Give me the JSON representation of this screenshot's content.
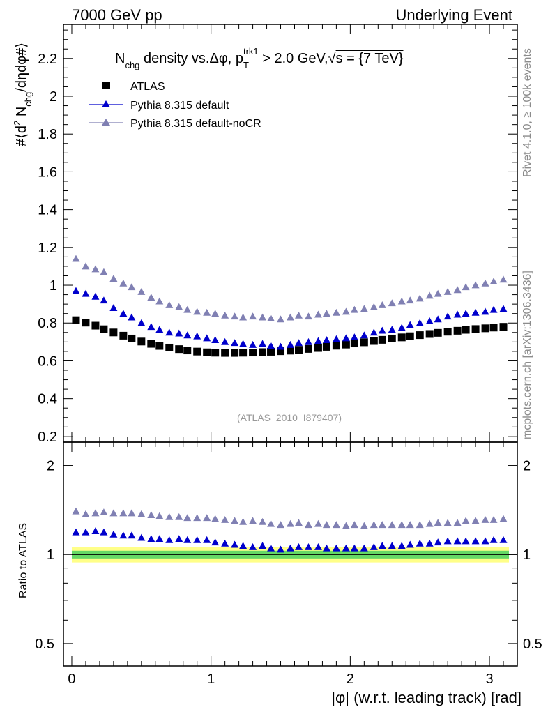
{
  "header": {
    "left": "7000 GeV pp",
    "right": "Underlying Event"
  },
  "side_labels": {
    "rivet": "Rivet 4.1.0, ≥ 100k events",
    "mcplots": "mcplots.cern.ch [arXiv:1306.3436]"
  },
  "analysis_id": "(ATLAS_2010_I879407)",
  "chart_data": [
    {
      "type": "scatter",
      "title": "N_chg density vs. Δφ, p_T^trk1 > 2.0 GeV, √s = {7 TeV}",
      "title_parts": {
        "n": "N",
        "chg": "chg",
        "mid": " density vs.Δφ, p",
        "T": "T",
        "trk1": "trk1",
        "tail": " > 2.0 GeV,",
        "sqrt": "√",
        "s": "s = {7 TeV}"
      },
      "ylabel": "#⟨d² N_chg/dηdφ#⟩",
      "ylabel_parts": {
        "a": "#⟨d",
        "two": "2",
        "b": " N",
        "chg": "chg",
        "c": "/dηdφ#⟩"
      },
      "xlim": [
        -0.06,
        3.2
      ],
      "ylim": [
        0.17,
        2.38
      ],
      "yticks": [
        "0.2",
        "0.4",
        "0.6",
        "0.8",
        "1",
        "1.2",
        "1.4",
        "1.6",
        "1.8",
        "2",
        "2.2"
      ],
      "ytick_values": [
        0.2,
        0.4,
        0.6,
        0.8,
        1.0,
        1.2,
        1.4,
        1.6,
        1.8,
        2.0,
        2.2
      ],
      "x": [
        0.03,
        0.1,
        0.17,
        0.23,
        0.3,
        0.37,
        0.43,
        0.5,
        0.57,
        0.63,
        0.7,
        0.77,
        0.83,
        0.9,
        0.97,
        1.03,
        1.1,
        1.17,
        1.23,
        1.3,
        1.37,
        1.43,
        1.5,
        1.57,
        1.63,
        1.7,
        1.77,
        1.83,
        1.9,
        1.97,
        2.03,
        2.1,
        2.17,
        2.23,
        2.3,
        2.37,
        2.43,
        2.5,
        2.57,
        2.63,
        2.7,
        2.77,
        2.83,
        2.9,
        2.97,
        3.03,
        3.1
      ],
      "series": [
        {
          "name": "ATLAS",
          "marker": "square",
          "color": "#000000",
          "values": [
            0.815,
            0.802,
            0.786,
            0.767,
            0.75,
            0.733,
            0.718,
            0.702,
            0.69,
            0.679,
            0.67,
            0.662,
            0.655,
            0.649,
            0.645,
            0.643,
            0.642,
            0.642,
            0.643,
            0.644,
            0.646,
            0.648,
            0.651,
            0.654,
            0.658,
            0.663,
            0.668,
            0.674,
            0.68,
            0.686,
            0.692,
            0.698,
            0.705,
            0.711,
            0.718,
            0.724,
            0.73,
            0.736,
            0.742,
            0.748,
            0.754,
            0.759,
            0.764,
            0.768,
            0.772,
            0.776,
            0.78
          ]
        },
        {
          "name": "Pythia 8.315 default",
          "marker": "triangle",
          "color": "#0000cc",
          "values": [
            0.97,
            0.955,
            0.94,
            0.92,
            0.88,
            0.85,
            0.83,
            0.8,
            0.78,
            0.765,
            0.75,
            0.745,
            0.735,
            0.73,
            0.72,
            0.71,
            0.7,
            0.695,
            0.69,
            0.685,
            0.69,
            0.68,
            0.675,
            0.685,
            0.695,
            0.7,
            0.705,
            0.71,
            0.715,
            0.72,
            0.725,
            0.735,
            0.75,
            0.76,
            0.765,
            0.775,
            0.79,
            0.8,
            0.81,
            0.82,
            0.835,
            0.845,
            0.85,
            0.855,
            0.86,
            0.87,
            0.875
          ]
        },
        {
          "name": "Pythia 8.315 default-noCR",
          "marker": "triangle",
          "color": "#8080b3",
          "values": [
            1.14,
            1.1,
            1.085,
            1.07,
            1.035,
            1.01,
            0.99,
            0.965,
            0.935,
            0.915,
            0.895,
            0.885,
            0.87,
            0.86,
            0.855,
            0.85,
            0.84,
            0.835,
            0.83,
            0.835,
            0.83,
            0.825,
            0.82,
            0.83,
            0.84,
            0.835,
            0.845,
            0.85,
            0.855,
            0.86,
            0.87,
            0.875,
            0.885,
            0.895,
            0.905,
            0.915,
            0.92,
            0.93,
            0.945,
            0.955,
            0.965,
            0.975,
            0.99,
            1.0,
            1.01,
            1.02,
            1.03
          ]
        }
      ]
    },
    {
      "type": "scatter",
      "title": "",
      "ylabel": "Ratio to ATLAS",
      "xlabel": "|φ| (w.r.t. leading track) [rad]",
      "xlim": [
        -0.06,
        3.2
      ],
      "ylim": [
        0.42,
        2.4
      ],
      "yscale": "log",
      "yticks": [
        "0.5",
        "1",
        "2"
      ],
      "ytick_values": [
        0.5,
        1.0,
        2.0
      ],
      "xticks": [
        "0",
        "1",
        "2",
        "3"
      ],
      "xtick_values": [
        0,
        1,
        2,
        3
      ],
      "band": {
        "stat": [
          0.97,
          1.03
        ],
        "total": [
          0.94,
          1.06
        ],
        "stat_color": "#66d966",
        "total_color": "#ffff88"
      },
      "series": [
        {
          "name": "Pythia 8.315 default",
          "marker": "triangle",
          "color": "#0000cc",
          "values": [
            1.19,
            1.19,
            1.2,
            1.19,
            1.17,
            1.16,
            1.16,
            1.14,
            1.13,
            1.13,
            1.12,
            1.13,
            1.12,
            1.12,
            1.12,
            1.1,
            1.09,
            1.08,
            1.07,
            1.06,
            1.07,
            1.05,
            1.04,
            1.05,
            1.06,
            1.06,
            1.06,
            1.05,
            1.05,
            1.05,
            1.05,
            1.05,
            1.06,
            1.07,
            1.07,
            1.07,
            1.08,
            1.09,
            1.09,
            1.1,
            1.11,
            1.11,
            1.11,
            1.11,
            1.11,
            1.12,
            1.12
          ]
        },
        {
          "name": "Pythia 8.315 default-noCR",
          "marker": "triangle",
          "color": "#8080b3",
          "values": [
            1.4,
            1.37,
            1.38,
            1.39,
            1.38,
            1.38,
            1.38,
            1.37,
            1.36,
            1.35,
            1.34,
            1.34,
            1.33,
            1.33,
            1.33,
            1.32,
            1.31,
            1.3,
            1.29,
            1.3,
            1.29,
            1.27,
            1.26,
            1.27,
            1.28,
            1.26,
            1.27,
            1.26,
            1.26,
            1.25,
            1.26,
            1.25,
            1.26,
            1.26,
            1.26,
            1.26,
            1.26,
            1.26,
            1.27,
            1.28,
            1.28,
            1.28,
            1.3,
            1.3,
            1.31,
            1.31,
            1.32
          ]
        }
      ]
    }
  ]
}
